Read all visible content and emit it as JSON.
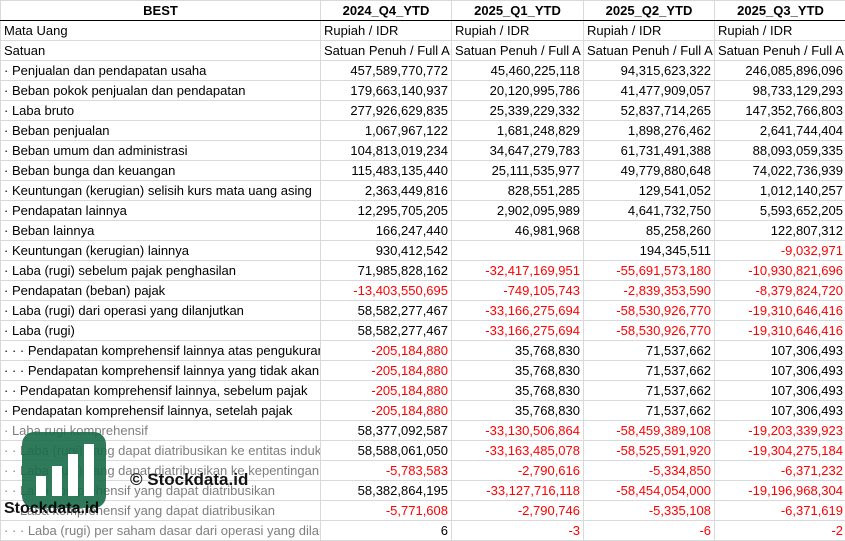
{
  "header": {
    "company": "BEST",
    "periods": [
      "2024_Q4_YTD",
      "2025_Q1_YTD",
      "2025_Q2_YTD",
      "2025_Q3_YTD"
    ]
  },
  "meta_rows": [
    {
      "label": "Mata Uang",
      "values": [
        "Rupiah / IDR",
        "Rupiah / IDR",
        "Rupiah / IDR",
        "Rupiah / IDR"
      ]
    },
    {
      "label": "Satuan",
      "values": [
        "Satuan Penuh / Full A",
        "Satuan Penuh / Full A",
        "Satuan Penuh / Full A",
        "Satuan Penuh / Full A"
      ]
    }
  ],
  "rows": [
    {
      "label": "· Penjualan dan pendapatan usaha",
      "values": [
        "457,589,770,772",
        "45,460,225,118",
        "94,315,623,322",
        "246,085,896,096"
      ]
    },
    {
      "label": "· Beban pokok penjualan dan pendapatan",
      "values": [
        "179,663,140,937",
        "20,120,995,786",
        "41,477,909,057",
        "98,733,129,293"
      ]
    },
    {
      "label": "· Laba bruto",
      "values": [
        "277,926,629,835",
        "25,339,229,332",
        "52,837,714,265",
        "147,352,766,803"
      ]
    },
    {
      "label": "· Beban penjualan",
      "values": [
        "1,067,967,122",
        "1,681,248,829",
        "1,898,276,462",
        "2,641,744,404"
      ]
    },
    {
      "label": "· Beban umum dan administrasi",
      "values": [
        "104,813,019,234",
        "34,647,279,783",
        "61,731,491,388",
        "88,093,059,335"
      ]
    },
    {
      "label": "· Beban bunga dan keuangan",
      "values": [
        "115,483,135,440",
        "25,111,535,977",
        "49,779,880,648",
        "74,022,736,939"
      ]
    },
    {
      "label": "· Keuntungan (kerugian) selisih kurs mata uang asing",
      "values": [
        "2,363,449,816",
        "828,551,285",
        "129,541,052",
        "1,012,140,257"
      ]
    },
    {
      "label": "· Pendapatan lainnya",
      "values": [
        "12,295,705,205",
        "2,902,095,989",
        "4,641,732,750",
        "5,593,652,205"
      ]
    },
    {
      "label": "· Beban lainnya",
      "values": [
        "166,247,440",
        "46,981,968",
        "85,258,260",
        "122,807,312"
      ]
    },
    {
      "label": "· Keuntungan (kerugian) lainnya",
      "values": [
        "930,412,542",
        "",
        "194,345,511",
        "-9,032,971"
      ]
    },
    {
      "label": "· Laba (rugi) sebelum pajak penghasilan",
      "values": [
        "71,985,828,162",
        "-32,417,169,951",
        "-55,691,573,180",
        "-10,930,821,696"
      ]
    },
    {
      "label": "· Pendapatan (beban) pajak",
      "values": [
        "-13,403,550,695",
        "-749,105,743",
        "-2,839,353,590",
        "-8,379,824,720"
      ]
    },
    {
      "label": "· Laba (rugi) dari operasi yang dilanjutkan",
      "values": [
        "58,582,277,467",
        "-33,166,275,694",
        "-58,530,926,770",
        "-19,310,646,416"
      ]
    },
    {
      "label": "· Laba (rugi)",
      "values": [
        "58,582,277,467",
        "-33,166,275,694",
        "-58,530,926,770",
        "-19,310,646,416"
      ]
    },
    {
      "label": "· · · Pendapatan komprehensif lainnya atas pengukuran",
      "values": [
        "-205,184,880",
        "35,768,830",
        "71,537,662",
        "107,306,493"
      ]
    },
    {
      "label": "· · · Pendapatan komprehensif lainnya yang tidak akan",
      "values": [
        "-205,184,880",
        "35,768,830",
        "71,537,662",
        "107,306,493"
      ]
    },
    {
      "label": "· · Pendapatan komprehensif lainnya, sebelum pajak",
      "values": [
        "-205,184,880",
        "35,768,830",
        "71,537,662",
        "107,306,493"
      ]
    },
    {
      "label": "· Pendapatan komprehensif lainnya, setelah pajak",
      "values": [
        "-205,184,880",
        "35,768,830",
        "71,537,662",
        "107,306,493"
      ]
    },
    {
      "label": "· Laba rugi komprehensif",
      "muted": true,
      "values": [
        "58,377,092,587",
        "-33,130,506,864",
        "-58,459,389,108",
        "-19,203,339,923"
      ]
    },
    {
      "label": "· · Laba (rugi) yang dapat diatribusikan ke entitas induk",
      "muted": true,
      "values": [
        "58,588,061,050",
        "-33,163,485,078",
        "-58,525,591,920",
        "-19,304,275,184"
      ]
    },
    {
      "label": "· · Laba (rugi) yang dapat diatribusikan ke kepentingan",
      "muted": true,
      "values": [
        "-5,783,583",
        "-2,790,616",
        "-5,334,850",
        "-6,371,232"
      ]
    },
    {
      "label": "· · Laba komprehensif yang dapat diatribusikan",
      "muted": true,
      "values": [
        "58,382,864,195",
        "-33,127,716,118",
        "-58,454,054,000",
        "-19,196,968,304"
      ]
    },
    {
      "label": "· · Laba komprehensif yang dapat diatribusikan",
      "muted": true,
      "values": [
        "-5,771,608",
        "-2,790,746",
        "-5,335,108",
        "-6,371,619"
      ]
    },
    {
      "label": "· · · Laba (rugi) per saham dasar dari operasi yang dilanjutkan",
      "muted": true,
      "values": [
        "6",
        "-3",
        "-6",
        "-2"
      ]
    }
  ],
  "watermark": {
    "text_big": "© Stockdata.id",
    "text_small": "Stockdata.id",
    "logo_color": "#1a6b4a",
    "icon": "bar-chart-logo-icon"
  }
}
